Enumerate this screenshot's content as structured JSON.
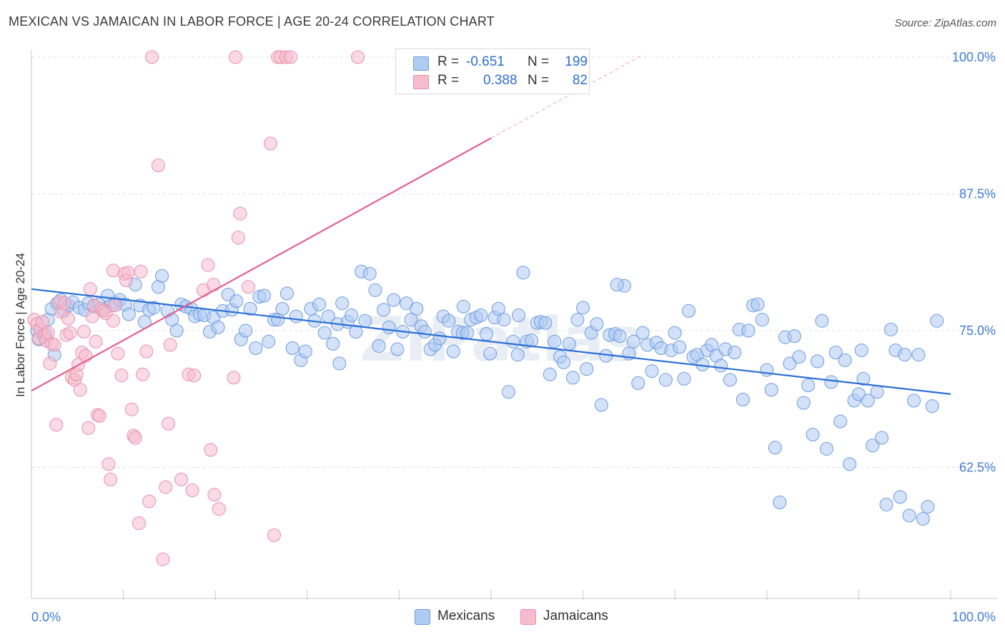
{
  "title": "MEXICAN VS JAMAICAN IN LABOR FORCE | AGE 20-24 CORRELATION CHART",
  "source": "Source: ZipAtlas.com",
  "watermark": "ZIPatlas",
  "legend": {
    "rows": [
      {
        "r_label": "R =",
        "r_value": "-0.651",
        "n_label": "N =",
        "n_value": "199"
      },
      {
        "r_label": "R =",
        "r_value": "0.388",
        "n_label": "N =",
        "n_value": "82"
      }
    ]
  },
  "bottom_legend": [
    "Mexicans",
    "Jamaicans"
  ],
  "colors": {
    "mexican_fill": "#aecbf2",
    "mexican_stroke": "#6d9be0",
    "mexican_line": "#2a6fd6",
    "jamaican_fill": "#f6bccd",
    "jamaican_stroke": "#e890ac",
    "jamaican_line": "#e5608b",
    "axis_label": "#3e7bd6",
    "grid": "#e0e0e0"
  },
  "chart_data": {
    "type": "scatter",
    "title": "MEXICAN VS JAMAICAN IN LABOR FORCE | AGE 20-24 CORRELATION CHART",
    "xlabel": "",
    "ylabel": "In Labor Force | Age 20-24",
    "xlim": [
      0,
      100
    ],
    "ylim": [
      52,
      102
    ],
    "x_tick_labels": [
      "0.0%",
      "100.0%"
    ],
    "y_ticks": [
      100,
      87.5,
      75,
      62.5
    ],
    "y_tick_labels": [
      "100.0%",
      "87.5%",
      "75.0%",
      "62.5%"
    ],
    "grid": true,
    "series": [
      {
        "name": "Mexicans",
        "r": -0.651,
        "n": 199,
        "trend": {
          "x": [
            0,
            100
          ],
          "y": [
            78.8,
            69.2
          ]
        },
        "points": [
          [
            0.6,
            75.0
          ],
          [
            0.8,
            74.2
          ],
          [
            1.5,
            74.7
          ],
          [
            1.8,
            76.0
          ],
          [
            2.2,
            77.0
          ],
          [
            2.5,
            72.8
          ],
          [
            2.8,
            77.5
          ],
          [
            3.2,
            77.8
          ],
          [
            3.5,
            76.8
          ],
          [
            4.0,
            77.3
          ],
          [
            4.5,
            77.6
          ],
          [
            5.2,
            77.1
          ],
          [
            5.8,
            76.9
          ],
          [
            6.2,
            77.5
          ],
          [
            6.8,
            77.2
          ],
          [
            7.3,
            77.4
          ],
          [
            7.8,
            76.9
          ],
          [
            8.3,
            78.2
          ],
          [
            8.7,
            77.3
          ],
          [
            9.2,
            77.5
          ],
          [
            9.6,
            77.8
          ],
          [
            10.2,
            77.4
          ],
          [
            10.6,
            76.5
          ],
          [
            11.3,
            79.2
          ],
          [
            11.8,
            77.3
          ],
          [
            12.3,
            75.8
          ],
          [
            12.8,
            76.9
          ],
          [
            13.3,
            77.1
          ],
          [
            13.8,
            79.0
          ],
          [
            14.2,
            80.0
          ],
          [
            14.8,
            76.8
          ],
          [
            15.3,
            76.0
          ],
          [
            15.8,
            75.0
          ],
          [
            16.3,
            77.4
          ],
          [
            16.8,
            77.2
          ],
          [
            17.4,
            77.0
          ],
          [
            17.8,
            76.3
          ],
          [
            18.3,
            76.5
          ],
          [
            18.8,
            76.4
          ],
          [
            19.4,
            74.9
          ],
          [
            19.8,
            76.2
          ],
          [
            20.3,
            75.3
          ],
          [
            20.8,
            76.8
          ],
          [
            21.4,
            78.3
          ],
          [
            21.8,
            76.9
          ],
          [
            22.3,
            77.7
          ],
          [
            22.8,
            74.2
          ],
          [
            23.3,
            75.0
          ],
          [
            23.8,
            77.0
          ],
          [
            24.4,
            73.4
          ],
          [
            24.8,
            78.1
          ],
          [
            25.3,
            78.2
          ],
          [
            25.8,
            74.0
          ],
          [
            26.4,
            76.0
          ],
          [
            26.8,
            76.0
          ],
          [
            27.3,
            77.0
          ],
          [
            27.8,
            78.4
          ],
          [
            28.4,
            73.4
          ],
          [
            28.8,
            76.3
          ],
          [
            29.3,
            72.3
          ],
          [
            29.8,
            73.1
          ],
          [
            30.4,
            77.0
          ],
          [
            30.8,
            75.9
          ],
          [
            31.3,
            77.4
          ],
          [
            31.9,
            74.8
          ],
          [
            32.3,
            76.3
          ],
          [
            32.8,
            73.8
          ],
          [
            33.3,
            75.6
          ],
          [
            33.8,
            77.5
          ],
          [
            34.4,
            75.8
          ],
          [
            34.8,
            76.4
          ],
          [
            35.3,
            74.9
          ],
          [
            35.9,
            80.4
          ],
          [
            36.3,
            75.9
          ],
          [
            36.8,
            80.2
          ],
          [
            37.4,
            78.7
          ],
          [
            37.8,
            73.6
          ],
          [
            38.3,
            76.9
          ],
          [
            38.9,
            75.3
          ],
          [
            39.4,
            77.8
          ],
          [
            39.8,
            73.3
          ],
          [
            40.4,
            74.9
          ],
          [
            40.8,
            77.5
          ],
          [
            41.3,
            76.0
          ],
          [
            41.9,
            77.0
          ],
          [
            42.4,
            75.4
          ],
          [
            42.8,
            74.9
          ],
          [
            43.4,
            73.3
          ],
          [
            43.9,
            73.7
          ],
          [
            44.4,
            74.3
          ],
          [
            44.8,
            76.3
          ],
          [
            45.4,
            75.9
          ],
          [
            45.9,
            73.1
          ],
          [
            46.4,
            74.9
          ],
          [
            46.9,
            74.8
          ],
          [
            47.4,
            74.8
          ],
          [
            47.8,
            76.0
          ],
          [
            48.4,
            76.2
          ],
          [
            48.9,
            76.4
          ],
          [
            49.5,
            74.7
          ],
          [
            49.9,
            72.9
          ],
          [
            50.4,
            76.2
          ],
          [
            50.8,
            77.0
          ],
          [
            51.4,
            76.0
          ],
          [
            51.9,
            69.4
          ],
          [
            52.4,
            74.0
          ],
          [
            52.9,
            72.8
          ],
          [
            53.5,
            80.3
          ],
          [
            53.9,
            74.0
          ],
          [
            54.4,
            74.1
          ],
          [
            55.0,
            75.7
          ],
          [
            55.4,
            75.8
          ],
          [
            55.9,
            75.7
          ],
          [
            56.4,
            71.0
          ],
          [
            56.9,
            74.0
          ],
          [
            57.5,
            72.6
          ],
          [
            57.9,
            72.1
          ],
          [
            58.5,
            73.8
          ],
          [
            58.9,
            70.7
          ],
          [
            59.4,
            76.0
          ],
          [
            60.0,
            77.1
          ],
          [
            60.4,
            71.5
          ],
          [
            60.9,
            74.8
          ],
          [
            61.5,
            75.6
          ],
          [
            62.0,
            68.2
          ],
          [
            62.5,
            72.7
          ],
          [
            62.9,
            74.6
          ],
          [
            63.5,
            74.7
          ],
          [
            64.0,
            74.5
          ],
          [
            64.5,
            79.1
          ],
          [
            65.0,
            72.9
          ],
          [
            65.5,
            74.0
          ],
          [
            66.0,
            70.2
          ],
          [
            66.5,
            74.8
          ],
          [
            67.0,
            73.7
          ],
          [
            67.5,
            71.3
          ],
          [
            68.0,
            73.9
          ],
          [
            68.5,
            73.4
          ],
          [
            69.0,
            70.5
          ],
          [
            69.6,
            73.2
          ],
          [
            70.0,
            74.8
          ],
          [
            70.5,
            73.5
          ],
          [
            71.0,
            70.6
          ],
          [
            71.5,
            76.8
          ],
          [
            72.0,
            72.6
          ],
          [
            72.4,
            72.8
          ],
          [
            73.0,
            71.9
          ],
          [
            73.5,
            73.2
          ],
          [
            74.0,
            73.7
          ],
          [
            74.5,
            72.7
          ],
          [
            75.0,
            71.8
          ],
          [
            75.5,
            73.3
          ],
          [
            76.0,
            70.5
          ],
          [
            76.5,
            73.0
          ],
          [
            77.0,
            75.1
          ],
          [
            77.4,
            68.7
          ],
          [
            78.0,
            75.0
          ],
          [
            78.5,
            77.3
          ],
          [
            79.0,
            77.4
          ],
          [
            79.5,
            76.0
          ],
          [
            80.0,
            71.4
          ],
          [
            80.5,
            69.6
          ],
          [
            80.9,
            64.3
          ],
          [
            81.4,
            59.3
          ],
          [
            82.0,
            74.4
          ],
          [
            82.5,
            72.0
          ],
          [
            83.0,
            74.5
          ],
          [
            83.5,
            72.6
          ],
          [
            84.0,
            68.4
          ],
          [
            84.5,
            70.0
          ],
          [
            85.0,
            65.5
          ],
          [
            85.5,
            72.2
          ],
          [
            86.0,
            75.9
          ],
          [
            86.5,
            64.2
          ],
          [
            87.0,
            70.3
          ],
          [
            87.5,
            73.0
          ],
          [
            88.0,
            66.7
          ],
          [
            88.5,
            72.3
          ],
          [
            89.0,
            62.8
          ],
          [
            89.5,
            68.6
          ],
          [
            90.0,
            69.2
          ],
          [
            90.5,
            70.6
          ],
          [
            91.0,
            68.6
          ],
          [
            91.5,
            64.5
          ],
          [
            92.0,
            69.4
          ],
          [
            92.5,
            65.2
          ],
          [
            93.0,
            59.1
          ],
          [
            93.5,
            75.1
          ],
          [
            94.0,
            73.2
          ],
          [
            94.5,
            59.8
          ],
          [
            95.0,
            72.8
          ],
          [
            95.5,
            58.1
          ],
          [
            96.0,
            68.6
          ],
          [
            96.5,
            72.8
          ],
          [
            97.0,
            57.8
          ],
          [
            97.5,
            58.9
          ],
          [
            98.0,
            68.1
          ],
          [
            98.5,
            75.9
          ],
          [
            90.3,
            73.2
          ],
          [
            53.0,
            76.4
          ],
          [
            47.0,
            77.2
          ],
          [
            63.7,
            79.2
          ],
          [
            33.5,
            72.0
          ]
        ]
      },
      {
        "name": "Jamaicans",
        "r": 0.388,
        "n": 82,
        "trend": {
          "x": [
            0,
            50
          ],
          "y": [
            69.5,
            92.6
          ]
        },
        "trend_dashed": {
          "x": [
            50,
            66.5
          ],
          "y": [
            92.6,
            100.2
          ]
        },
        "points": [
          [
            0.3,
            76.0
          ],
          [
            0.6,
            75.6
          ],
          [
            0.8,
            74.3
          ],
          [
            1.0,
            75.1
          ],
          [
            1.2,
            75.8
          ],
          [
            1.4,
            74.5
          ],
          [
            1.6,
            74.1
          ],
          [
            1.8,
            74.8
          ],
          [
            2.0,
            72.0
          ],
          [
            2.2,
            73.8
          ],
          [
            2.5,
            73.7
          ],
          [
            2.7,
            66.4
          ],
          [
            3.0,
            77.6
          ],
          [
            3.2,
            76.7
          ],
          [
            3.6,
            77.5
          ],
          [
            3.8,
            74.6
          ],
          [
            4.0,
            76.1
          ],
          [
            4.2,
            74.8
          ],
          [
            4.4,
            70.7
          ],
          [
            4.7,
            70.5
          ],
          [
            4.9,
            71.0
          ],
          [
            5.1,
            71.9
          ],
          [
            5.3,
            69.6
          ],
          [
            5.5,
            73.0
          ],
          [
            5.7,
            74.9
          ],
          [
            5.9,
            72.7
          ],
          [
            6.2,
            66.1
          ],
          [
            6.4,
            78.8
          ],
          [
            6.6,
            76.3
          ],
          [
            6.8,
            77.3
          ],
          [
            7.0,
            74.0
          ],
          [
            7.2,
            67.3
          ],
          [
            7.4,
            67.2
          ],
          [
            7.6,
            77.0
          ],
          [
            7.8,
            76.8
          ],
          [
            8.1,
            76.6
          ],
          [
            8.4,
            62.8
          ],
          [
            8.6,
            61.4
          ],
          [
            8.9,
            75.9
          ],
          [
            9.1,
            77.3
          ],
          [
            9.4,
            72.9
          ],
          [
            9.8,
            70.9
          ],
          [
            10.1,
            80.2
          ],
          [
            10.3,
            79.6
          ],
          [
            10.5,
            80.3
          ],
          [
            10.9,
            67.8
          ],
          [
            11.1,
            65.4
          ],
          [
            11.3,
            65.2
          ],
          [
            11.7,
            57.4
          ],
          [
            11.9,
            80.4
          ],
          [
            12.1,
            71.0
          ],
          [
            12.5,
            73.1
          ],
          [
            12.8,
            59.4
          ],
          [
            13.1,
            100.0
          ],
          [
            13.8,
            90.1
          ],
          [
            14.3,
            54.1
          ],
          [
            14.6,
            60.7
          ],
          [
            14.9,
            66.5
          ],
          [
            15.1,
            73.7
          ],
          [
            16.3,
            61.4
          ],
          [
            17.1,
            71.0
          ],
          [
            17.5,
            60.4
          ],
          [
            17.7,
            70.9
          ],
          [
            18.7,
            78.7
          ],
          [
            19.2,
            81.0
          ],
          [
            19.5,
            64.1
          ],
          [
            19.8,
            79.2
          ],
          [
            19.9,
            60.0
          ],
          [
            20.4,
            58.7
          ],
          [
            22.0,
            70.7
          ],
          [
            22.2,
            100.0
          ],
          [
            22.5,
            83.5
          ],
          [
            22.7,
            85.7
          ],
          [
            23.6,
            79.0
          ],
          [
            26.0,
            92.1
          ],
          [
            26.4,
            56.3
          ],
          [
            26.8,
            100.0
          ],
          [
            27.1,
            100.0
          ],
          [
            27.7,
            100.0
          ],
          [
            28.2,
            100.0
          ],
          [
            35.5,
            100.0
          ],
          [
            8.9,
            80.5
          ]
        ]
      }
    ]
  }
}
